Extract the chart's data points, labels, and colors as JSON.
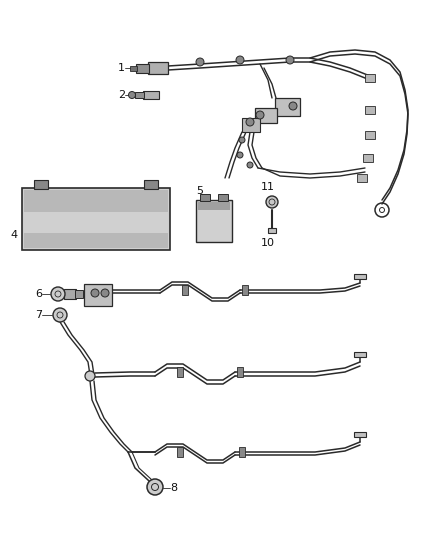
{
  "bg_color": "#ffffff",
  "line_color": "#2a2a2a",
  "label_fontsize": 8,
  "label_color": "#111111"
}
